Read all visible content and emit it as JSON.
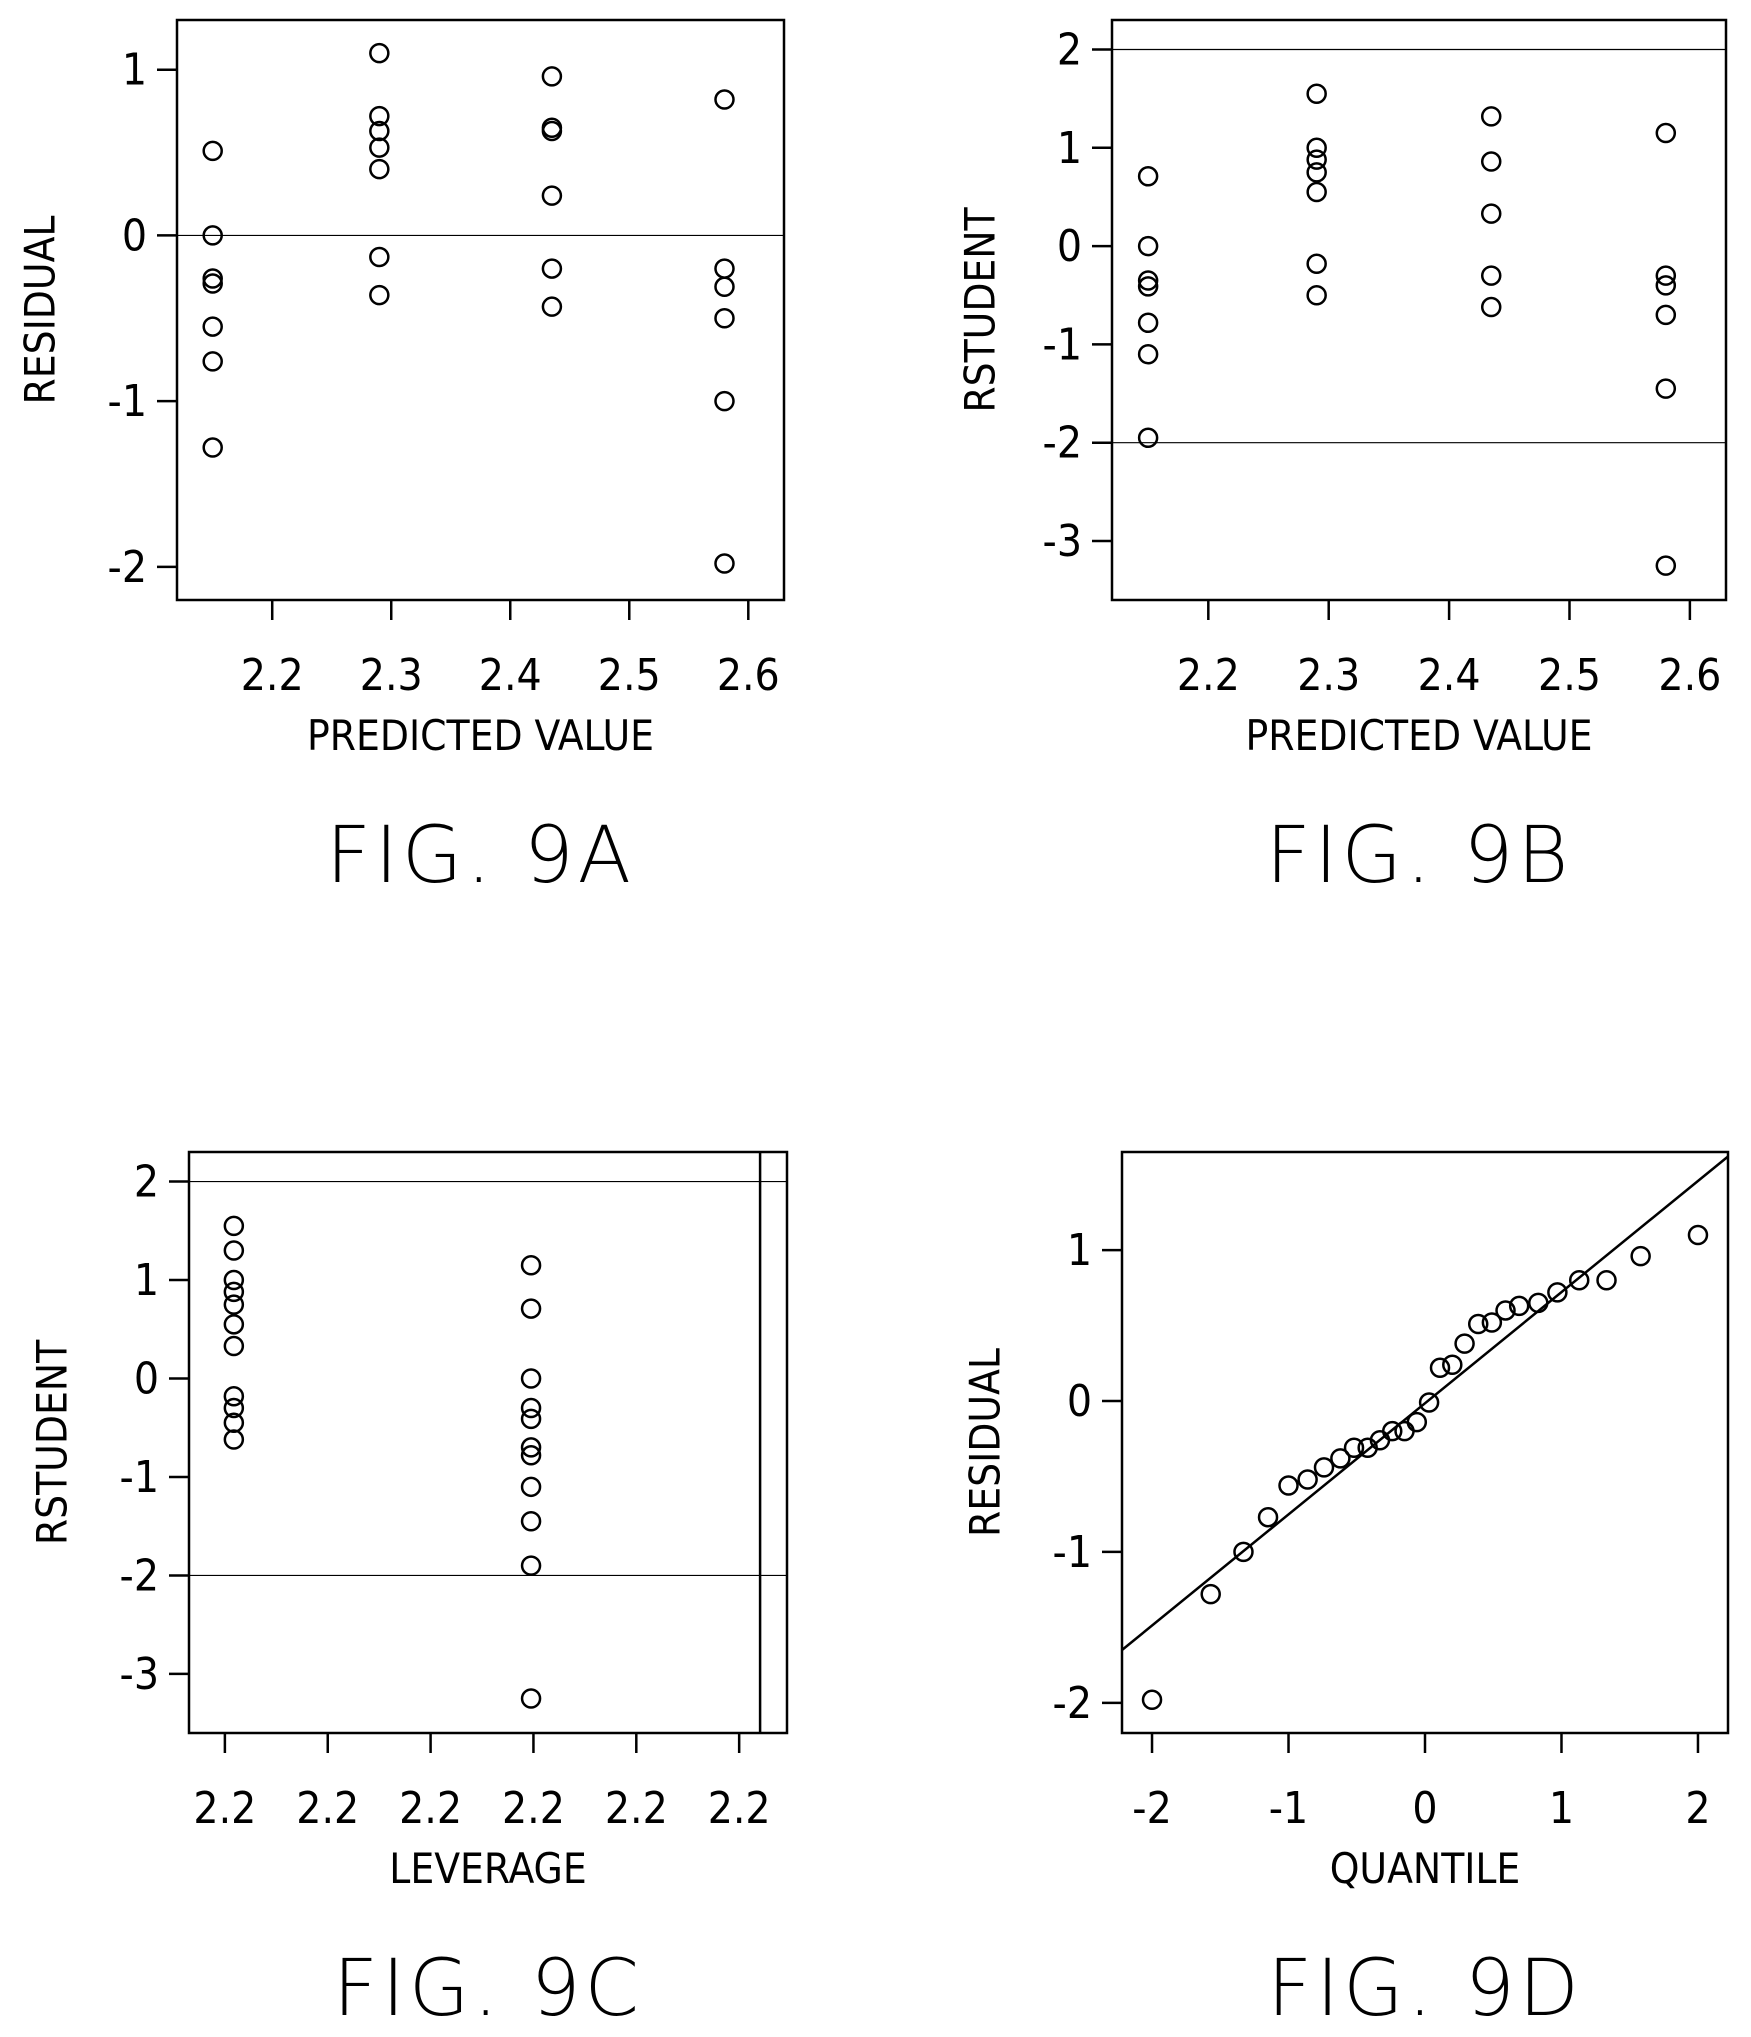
{
  "chart_data": [
    {
      "id": "fig9a",
      "type": "scatter",
      "figure_label": "FIG. 9A",
      "xlabel": "PREDICTED VALUE",
      "ylabel": "RESIDUAL",
      "xlim": [
        2.12,
        2.63
      ],
      "ylim": [
        -2.2,
        1.3
      ],
      "x_ticks": [
        2.2,
        2.3,
        2.4,
        2.5,
        2.6
      ],
      "x_tick_labels": [
        "2.2",
        "2.3",
        "2.4",
        "2.5",
        "2.6"
      ],
      "y_ticks": [
        1,
        0,
        -1,
        -2
      ],
      "y_tick_labels": [
        "1",
        "0",
        "-1",
        "-2"
      ],
      "hlines": [
        0
      ],
      "points": [
        [
          2.15,
          0.51
        ],
        [
          2.15,
          0.0
        ],
        [
          2.15,
          -0.26
        ],
        [
          2.15,
          -0.29
        ],
        [
          2.15,
          -0.55
        ],
        [
          2.15,
          -0.76
        ],
        [
          2.15,
          -1.28
        ],
        [
          2.29,
          1.1
        ],
        [
          2.29,
          0.72
        ],
        [
          2.29,
          0.63
        ],
        [
          2.29,
          0.53
        ],
        [
          2.29,
          0.4
        ],
        [
          2.29,
          -0.13
        ],
        [
          2.29,
          -0.36
        ],
        [
          2.435,
          0.96
        ],
        [
          2.435,
          0.65
        ],
        [
          2.435,
          0.63
        ],
        [
          2.435,
          0.24
        ],
        [
          2.435,
          -0.2
        ],
        [
          2.435,
          -0.43
        ],
        [
          2.58,
          0.82
        ],
        [
          2.58,
          -0.2
        ],
        [
          2.58,
          -0.31
        ],
        [
          2.58,
          -0.5
        ],
        [
          2.58,
          -1.0
        ],
        [
          2.58,
          -1.98
        ]
      ]
    },
    {
      "id": "fig9b",
      "type": "scatter",
      "figure_label": "FIG. 9B",
      "xlabel": "PREDICTED VALUE",
      "ylabel": "RSTUDENT",
      "xlim": [
        2.12,
        2.63
      ],
      "ylim": [
        -3.6,
        2.3
      ],
      "x_ticks": [
        2.2,
        2.3,
        2.4,
        2.5,
        2.6
      ],
      "x_tick_labels": [
        "2.2",
        "2.3",
        "2.4",
        "2.5",
        "2.6"
      ],
      "y_ticks": [
        2,
        1,
        0,
        -1,
        -2,
        -3
      ],
      "y_tick_labels": [
        "2",
        "1",
        "0",
        "-1",
        "-2",
        "-3"
      ],
      "hlines": [
        2,
        -2
      ],
      "points": [
        [
          2.15,
          0.71
        ],
        [
          2.15,
          0.0
        ],
        [
          2.15,
          -0.35
        ],
        [
          2.15,
          -0.41
        ],
        [
          2.15,
          -0.78
        ],
        [
          2.15,
          -1.1
        ],
        [
          2.15,
          -1.95
        ],
        [
          2.29,
          1.55
        ],
        [
          2.29,
          1.0
        ],
        [
          2.29,
          0.88
        ],
        [
          2.29,
          0.75
        ],
        [
          2.29,
          0.55
        ],
        [
          2.29,
          -0.18
        ],
        [
          2.29,
          -0.5
        ],
        [
          2.435,
          1.32
        ],
        [
          2.435,
          0.86
        ],
        [
          2.435,
          0.33
        ],
        [
          2.435,
          -0.3
        ],
        [
          2.435,
          -0.62
        ],
        [
          2.58,
          1.15
        ],
        [
          2.58,
          -0.3
        ],
        [
          2.58,
          -0.4
        ],
        [
          2.58,
          -0.7
        ],
        [
          2.58,
          -1.45
        ],
        [
          2.58,
          -3.25
        ]
      ]
    },
    {
      "id": "fig9c",
      "type": "scatter",
      "figure_label": "FIG. 9C",
      "xlabel": "LEVERAGE",
      "ylabel": "RSTUDENT",
      "xlim": [
        0,
        1
      ],
      "ylim": [
        -3.6,
        2.3
      ],
      "x_ticks": [
        0.06,
        0.232,
        0.404,
        0.576,
        0.748,
        0.92
      ],
      "x_tick_labels": [
        "2.2",
        "2.2",
        "2.2",
        "2.2",
        "2.2",
        "2.2"
      ],
      "y_ticks": [
        2,
        1,
        0,
        -1,
        -2,
        -3
      ],
      "y_tick_labels": [
        "2",
        "1",
        "0",
        "-1",
        "-2",
        "-3"
      ],
      "hlines": [
        2,
        -2
      ],
      "vlines": [
        0.955
      ],
      "points": [
        [
          0.075,
          1.55
        ],
        [
          0.075,
          1.3
        ],
        [
          0.075,
          1.0
        ],
        [
          0.075,
          0.88
        ],
        [
          0.075,
          0.75
        ],
        [
          0.075,
          0.55
        ],
        [
          0.075,
          0.33
        ],
        [
          0.075,
          -0.18
        ],
        [
          0.075,
          -0.3
        ],
        [
          0.075,
          -0.45
        ],
        [
          0.075,
          -0.62
        ],
        [
          0.572,
          1.15
        ],
        [
          0.572,
          0.71
        ],
        [
          0.572,
          0.0
        ],
        [
          0.572,
          -0.3
        ],
        [
          0.572,
          -0.41
        ],
        [
          0.572,
          -0.7
        ],
        [
          0.572,
          -0.78
        ],
        [
          0.572,
          -1.1
        ],
        [
          0.572,
          -1.45
        ],
        [
          0.572,
          -1.9
        ],
        [
          0.572,
          -3.25
        ]
      ]
    },
    {
      "id": "fig9d",
      "type": "scatter",
      "figure_label": "FIG. 9D",
      "xlabel": "QUANTILE",
      "ylabel": "RESIDUAL",
      "xlim": [
        -2.22,
        2.22
      ],
      "ylim": [
        -2.2,
        1.65
      ],
      "x_ticks": [
        -2,
        -1,
        0,
        1,
        2
      ],
      "x_tick_labels": [
        "-2",
        "-1",
        "0",
        "1",
        "2"
      ],
      "y_ticks": [
        1,
        0,
        -1,
        -2
      ],
      "y_tick_labels": [
        "1",
        "0",
        "-1",
        "-2"
      ],
      "fit_line": [
        [
          -2.22,
          -1.65
        ],
        [
          2.22,
          1.62
        ]
      ],
      "points": [
        [
          -2.0,
          -1.98
        ],
        [
          -1.57,
          -1.28
        ],
        [
          -1.33,
          -1.0
        ],
        [
          -1.15,
          -0.77
        ],
        [
          -1.0,
          -0.56
        ],
        [
          -0.86,
          -0.52
        ],
        [
          -0.74,
          -0.44
        ],
        [
          -0.62,
          -0.38
        ],
        [
          -0.52,
          -0.31
        ],
        [
          -0.42,
          -0.31
        ],
        [
          -0.33,
          -0.26
        ],
        [
          -0.24,
          -0.2
        ],
        [
          -0.15,
          -0.2
        ],
        [
          -0.06,
          -0.14
        ],
        [
          0.03,
          -0.01
        ],
        [
          0.11,
          0.22
        ],
        [
          0.2,
          0.24
        ],
        [
          0.29,
          0.38
        ],
        [
          0.39,
          0.51
        ],
        [
          0.49,
          0.52
        ],
        [
          0.59,
          0.6
        ],
        [
          0.69,
          0.63
        ],
        [
          0.83,
          0.65
        ],
        [
          0.97,
          0.72
        ],
        [
          1.13,
          0.8
        ],
        [
          1.33,
          0.8
        ],
        [
          1.58,
          0.96
        ],
        [
          2.0,
          1.1
        ]
      ]
    }
  ]
}
